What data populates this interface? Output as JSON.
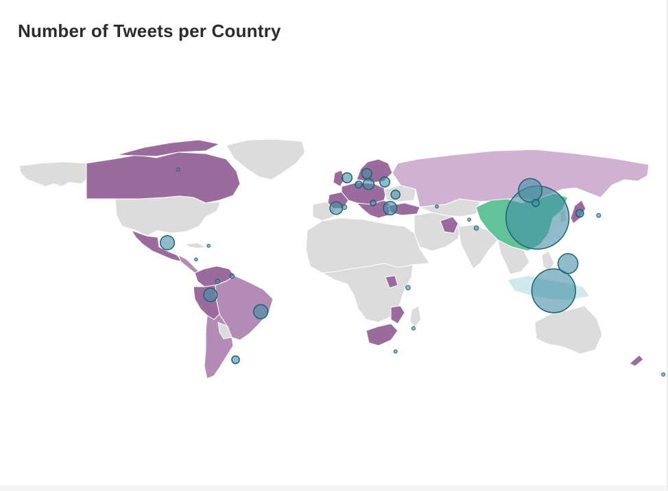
{
  "chart": {
    "title": "Number of Tweets per Country",
    "type": "choropleth-bubble-map"
  },
  "colors": {
    "land_default": "#dcdcdc",
    "border": "#ffffff",
    "purple_dark": "#9c6b9d",
    "purple_mid": "#b28cb4",
    "purple_light": "#cfb2d0",
    "green_top": "#63c29a",
    "bubble_fill": "rgba(68,144,163,0.60)",
    "bubble_stroke": "#1d5f74"
  },
  "chart_data": {
    "type": "bubble-map",
    "highlighted_regions": [
      {
        "name": "China",
        "category": "highest"
      },
      {
        "name": "Russia",
        "category": "light"
      },
      {
        "name": "Canada",
        "category": "dark"
      },
      {
        "name": "Mexico",
        "category": "dark"
      },
      {
        "name": "Brazil",
        "category": "mid"
      },
      {
        "name": "Argentina",
        "category": "mid"
      },
      {
        "name": "Colombia",
        "category": "dark"
      },
      {
        "name": "Venezuela",
        "category": "dark"
      },
      {
        "name": "Peru",
        "category": "dark"
      },
      {
        "name": "South Africa",
        "category": "dark"
      },
      {
        "name": "Turkey",
        "category": "dark"
      },
      {
        "name": "Pakistan",
        "category": "dark"
      },
      {
        "name": "Japan",
        "category": "dark"
      },
      {
        "name": "New Zealand",
        "category": "dark"
      },
      {
        "name": "Western Europe",
        "category": "dark"
      },
      {
        "name": "Finland",
        "category": "dark"
      }
    ],
    "bubbles": [
      {
        "name": "China",
        "lon": 104,
        "lat": 35,
        "value": 100
      },
      {
        "name": "Indonesia",
        "lon": 113,
        "lat": 0,
        "value": 48
      },
      {
        "name": "Mongolia",
        "lon": 100,
        "lat": 48,
        "value": 14
      },
      {
        "name": "Philippines",
        "lon": 121,
        "lat": 13,
        "value": 10
      },
      {
        "name": "Portugal",
        "lon": -8,
        "lat": 39.5,
        "value": 4
      },
      {
        "name": "Greece",
        "lon": 22,
        "lat": 39.5,
        "value": 4.5
      },
      {
        "name": "Mexico",
        "lon": -102,
        "lat": 23,
        "value": 5
      },
      {
        "name": "Brazil",
        "lon": -50,
        "lat": -10,
        "value": 5
      },
      {
        "name": "Ecuador",
        "lon": -78,
        "lat": -2,
        "value": 4.5
      },
      {
        "name": "United Kingdom",
        "lon": -2,
        "lat": 54,
        "value": 2.5
      },
      {
        "name": "Germany",
        "lon": 10,
        "lat": 51,
        "value": 3
      },
      {
        "name": "Denmark",
        "lon": 9,
        "lat": 56,
        "value": 2.5
      },
      {
        "name": "Poland",
        "lon": 19,
        "lat": 52,
        "value": 2.5
      },
      {
        "name": "Romania",
        "lon": 25,
        "lat": 46,
        "value": 2
      },
      {
        "name": "Korea",
        "lon": 127.5,
        "lat": 37,
        "value": 1.5
      },
      {
        "name": "Argentina",
        "lon": -64,
        "lat": -33,
        "value": 1.5
      },
      {
        "name": "Central Mongolia",
        "lon": 103,
        "lat": 42,
        "value": 1.3
      },
      {
        "name": "Belgium",
        "lon": 4.5,
        "lat": 50.8,
        "value": 1.2
      },
      {
        "name": "Italy",
        "lon": 12.5,
        "lat": 42,
        "value": 0.8
      },
      {
        "name": "Spain",
        "lon": -3.5,
        "lat": 40,
        "value": 0.6
      },
      {
        "name": "Pakistan",
        "lon": 70,
        "lat": 30,
        "value": 0.5
      },
      {
        "name": "Uganda",
        "lon": 32,
        "lat": 1.5,
        "value": 0.5
      },
      {
        "name": "Venezuela",
        "lon": -66,
        "lat": 7,
        "value": 0.5
      },
      {
        "name": "Colombia",
        "lon": -74,
        "lat": 4.5,
        "value": 0.5
      },
      {
        "name": "Canada",
        "lon": -96,
        "lat": 58,
        "value": 0.3
      },
      {
        "name": "Japan",
        "lon": 138,
        "lat": 36,
        "value": 0.4
      },
      {
        "name": "New Zealand",
        "lon": 174,
        "lat": -40,
        "value": 0.3
      },
      {
        "name": "Mozambique",
        "lon": 35,
        "lat": -18,
        "value": 0.3
      },
      {
        "name": "South Africa",
        "lon": 25,
        "lat": -29,
        "value": 0.3
      },
      {
        "name": "Honduras",
        "lon": -86,
        "lat": 15,
        "value": 0.25
      },
      {
        "name": "Cuba",
        "lon": -79,
        "lat": 21.5,
        "value": 0.25
      },
      {
        "name": "Azerbaijan",
        "lon": 48,
        "lat": 40.3,
        "value": 0.25
      },
      {
        "name": "Afghanistan",
        "lon": 66,
        "lat": 34,
        "value": 0.25
      }
    ]
  }
}
